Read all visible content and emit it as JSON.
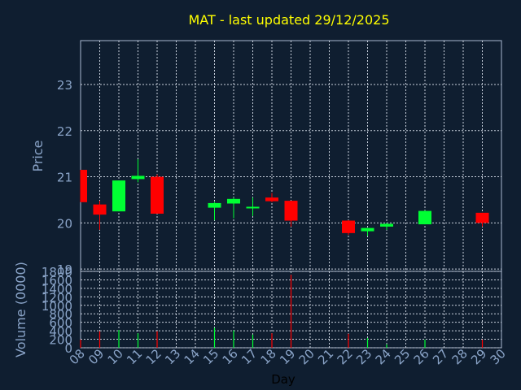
{
  "chart_data": [
    {
      "type": "candlestick",
      "title": "MAT - last updated 29/12/2025",
      "ylabel": "Price",
      "xlabel": "Day",
      "ylim": [
        18.95,
        23.95
      ],
      "yticks": [
        19,
        20,
        21,
        22,
        23
      ],
      "xlim": [
        8,
        30
      ],
      "grid": true,
      "colors": {
        "up": "#00ff33",
        "down": "#ff0000",
        "background": "#0f1e30",
        "axis": "#a8b8d0",
        "title": "#ffff00",
        "tick_text": "#8aa4c8"
      },
      "candles": [
        {
          "day": 8,
          "open": 21.15,
          "high": 21.15,
          "low": 20.45,
          "close": 20.45
        },
        {
          "day": 9,
          "open": 20.4,
          "high": 20.48,
          "low": 19.85,
          "close": 20.18
        },
        {
          "day": 10,
          "open": 20.25,
          "high": 20.92,
          "low": 20.25,
          "close": 20.92
        },
        {
          "day": 11,
          "open": 20.95,
          "high": 21.38,
          "low": 20.88,
          "close": 21.02
        },
        {
          "day": 12,
          "open": 21.0,
          "high": 21.05,
          "low": 20.2,
          "close": 20.2
        },
        {
          "day": 15,
          "open": 20.33,
          "high": 20.45,
          "low": 20.06,
          "close": 20.43
        },
        {
          "day": 16,
          "open": 20.42,
          "high": 20.55,
          "low": 20.1,
          "close": 20.52
        },
        {
          "day": 17,
          "open": 20.33,
          "high": 20.55,
          "low": 20.15,
          "close": 20.35
        },
        {
          "day": 18,
          "open": 20.55,
          "high": 20.65,
          "low": 20.45,
          "close": 20.47
        },
        {
          "day": 19,
          "open": 20.48,
          "high": 20.48,
          "low": 19.92,
          "close": 20.05
        },
        {
          "day": 22,
          "open": 20.05,
          "high": 20.06,
          "low": 19.74,
          "close": 19.78
        },
        {
          "day": 23,
          "open": 19.82,
          "high": 19.89,
          "low": 19.72,
          "close": 19.89
        },
        {
          "day": 24,
          "open": 19.92,
          "high": 20.0,
          "low": 19.85,
          "close": 19.98
        },
        {
          "day": 26,
          "open": 19.97,
          "high": 20.27,
          "low": 19.97,
          "close": 20.26
        },
        {
          "day": 29,
          "open": 20.22,
          "high": 20.22,
          "low": 19.92,
          "close": 20.0
        }
      ]
    },
    {
      "type": "bar",
      "ylabel": "Volume (0000)",
      "xlabel": "Day",
      "ylim": [
        0,
        1800
      ],
      "yticks": [
        0,
        200,
        400,
        600,
        800,
        1000,
        1200,
        1400,
        1600,
        1800
      ],
      "xticks": [
        "08",
        "09",
        "10",
        "11",
        "12",
        "13",
        "14",
        "15",
        "16",
        "17",
        "18",
        "19",
        "20",
        "21",
        "22",
        "23",
        "24",
        "25",
        "26",
        "27",
        "28",
        "29",
        "30"
      ],
      "bars": [
        {
          "day": 8,
          "value": 190,
          "dir": "down"
        },
        {
          "day": 9,
          "value": 390,
          "dir": "down"
        },
        {
          "day": 10,
          "value": 420,
          "dir": "up"
        },
        {
          "day": 11,
          "value": 340,
          "dir": "up"
        },
        {
          "day": 12,
          "value": 390,
          "dir": "down"
        },
        {
          "day": 15,
          "value": 470,
          "dir": "up"
        },
        {
          "day": 16,
          "value": 410,
          "dir": "up"
        },
        {
          "day": 17,
          "value": 310,
          "dir": "up"
        },
        {
          "day": 18,
          "value": 340,
          "dir": "down"
        },
        {
          "day": 19,
          "value": 1720,
          "dir": "down"
        },
        {
          "day": 22,
          "value": 330,
          "dir": "down"
        },
        {
          "day": 23,
          "value": 230,
          "dir": "up"
        },
        {
          "day": 24,
          "value": 80,
          "dir": "up"
        },
        {
          "day": 26,
          "value": 190,
          "dir": "up"
        },
        {
          "day": 29,
          "value": 190,
          "dir": "down"
        }
      ]
    }
  ]
}
